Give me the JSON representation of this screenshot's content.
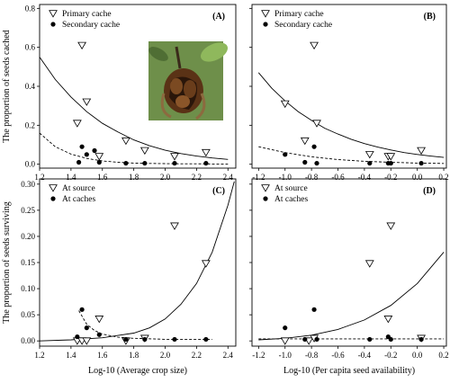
{
  "chart_data": [
    {
      "panel": "A",
      "type": "scatter",
      "label": "(A)",
      "x_tick_labels": [
        "1.2",
        "1.4",
        "1.6",
        "1.8",
        "2.0",
        "2.2",
        "2.4"
      ],
      "y_tick_labels": [
        "0.0",
        "0.2",
        "0.4",
        "0.6",
        "0.8"
      ],
      "xlim": [
        1.2,
        2.45
      ],
      "ylim": [
        -0.02,
        0.82
      ],
      "ylabel": "The proportion of seeds cached",
      "inset_photo": true,
      "series": [
        {
          "name": "Primary cache",
          "marker": "triangle-down",
          "x": [
            1.44,
            1.47,
            1.5,
            1.58,
            1.75,
            1.87,
            2.06,
            2.26
          ],
          "y": [
            0.21,
            0.61,
            0.32,
            0.04,
            0.12,
            0.07,
            0.04,
            0.06
          ]
        },
        {
          "name": "Secondary cache",
          "marker": "circle",
          "x": [
            1.45,
            1.47,
            1.5,
            1.55,
            1.58,
            1.75,
            1.87,
            2.06,
            2.26
          ],
          "y": [
            0.01,
            0.09,
            0.05,
            0.07,
            0.01,
            0.005,
            0.005,
            0.005,
            0.005
          ]
        }
      ],
      "fits": [
        {
          "style": "solid",
          "x": [
            1.2,
            1.3,
            1.4,
            1.5,
            1.6,
            1.7,
            1.8,
            1.9,
            2.0,
            2.1,
            2.2,
            2.3,
            2.4
          ],
          "y": [
            0.55,
            0.435,
            0.345,
            0.27,
            0.21,
            0.165,
            0.125,
            0.095,
            0.072,
            0.055,
            0.042,
            0.032,
            0.025
          ]
        },
        {
          "style": "dashed",
          "x": [
            1.2,
            1.3,
            1.4,
            1.5,
            1.6,
            1.7,
            1.8,
            1.9,
            2.0,
            2.1,
            2.2,
            2.3,
            2.4
          ],
          "y": [
            0.16,
            0.09,
            0.052,
            0.03,
            0.017,
            0.01,
            0.006,
            0.004,
            0.003,
            0.002,
            0.002,
            0.001,
            0.001
          ]
        }
      ]
    },
    {
      "panel": "B",
      "type": "scatter",
      "label": "(B)",
      "x_tick_labels": [
        "-1.2",
        "-1.0",
        "-0.8",
        "-0.6",
        "-0.4",
        "-0.2",
        "0.0",
        "0.2"
      ],
      "y_tick_labels": [],
      "xlim": [
        -1.25,
        0.22
      ],
      "ylim": [
        -0.02,
        0.82
      ],
      "series": [
        {
          "name": "Primary cache",
          "marker": "triangle-down",
          "x": [
            -1.0,
            -0.85,
            -0.78,
            -0.76,
            -0.36,
            -0.22,
            -0.2,
            0.03
          ],
          "y": [
            0.31,
            0.12,
            0.61,
            0.21,
            0.05,
            0.04,
            0.04,
            0.07
          ]
        },
        {
          "name": "Secondary cache",
          "marker": "circle",
          "x": [
            -1.0,
            -0.85,
            -0.78,
            -0.76,
            -0.36,
            -0.22,
            -0.2,
            0.03
          ],
          "y": [
            0.05,
            0.01,
            0.09,
            0.005,
            0.005,
            0.005,
            0.005,
            0.005
          ]
        }
      ],
      "fits": [
        {
          "style": "solid",
          "x": [
            -1.2,
            -1.1,
            -1.0,
            -0.9,
            -0.8,
            -0.7,
            -0.6,
            -0.5,
            -0.4,
            -0.3,
            -0.2,
            -0.1,
            0.0,
            0.1,
            0.2
          ],
          "y": [
            0.47,
            0.39,
            0.325,
            0.27,
            0.225,
            0.185,
            0.155,
            0.128,
            0.106,
            0.088,
            0.073,
            0.06,
            0.05,
            0.042,
            0.035
          ]
        },
        {
          "style": "dashed",
          "x": [
            -1.2,
            -1.0,
            -0.8,
            -0.6,
            -0.4,
            -0.2,
            0.0,
            0.2
          ],
          "y": [
            0.09,
            0.06,
            0.038,
            0.024,
            0.015,
            0.01,
            0.006,
            0.004
          ]
        }
      ]
    },
    {
      "panel": "C",
      "type": "scatter",
      "label": "(C)",
      "x_tick_labels": [
        "1.2",
        "1.4",
        "1.6",
        "1.8",
        "2.0",
        "2.2",
        "2.4"
      ],
      "y_tick_labels": [
        "0.00",
        "0.05",
        "0.10",
        "0.15",
        "0.20",
        "0.25",
        "0.30"
      ],
      "xlim": [
        1.2,
        2.45
      ],
      "ylim": [
        -0.01,
        0.31
      ],
      "xlabel": "Log-10 (Average crop size)",
      "ylabel": "The proportion of seeds surviving",
      "series": [
        {
          "name": "At source",
          "marker": "triangle-down",
          "x": [
            1.44,
            1.47,
            1.5,
            1.58,
            1.75,
            1.87,
            2.06,
            2.26
          ],
          "y": [
            0.0,
            0.0,
            0.0,
            0.042,
            0.0,
            0.005,
            0.22,
            0.148
          ]
        },
        {
          "name": "At caches",
          "marker": "circle",
          "x": [
            1.44,
            1.47,
            1.5,
            1.58,
            1.75,
            1.87,
            2.06,
            2.26
          ],
          "y": [
            0.008,
            0.06,
            0.025,
            0.012,
            0.003,
            0.003,
            0.003,
            0.003
          ]
        }
      ],
      "fits": [
        {
          "style": "solid",
          "x": [
            1.2,
            1.4,
            1.6,
            1.8,
            1.9,
            2.0,
            2.1,
            2.2,
            2.3,
            2.4,
            2.44
          ],
          "y": [
            0.0,
            0.002,
            0.006,
            0.015,
            0.025,
            0.042,
            0.07,
            0.11,
            0.17,
            0.26,
            0.305
          ]
        },
        {
          "style": "dashed",
          "x": [
            1.45,
            1.5,
            1.55,
            1.6,
            1.7,
            1.8,
            2.0,
            2.2,
            2.3
          ],
          "y": [
            0.058,
            0.032,
            0.02,
            0.013,
            0.007,
            0.005,
            0.003,
            0.003,
            0.003
          ]
        }
      ]
    },
    {
      "panel": "D",
      "type": "scatter",
      "label": "(D)",
      "x_tick_labels": [
        "-1.2",
        "-1.0",
        "-0.8",
        "-0.6",
        "-0.4",
        "-0.2",
        "0.0",
        "0.2"
      ],
      "y_tick_labels": [],
      "xlim": [
        -1.25,
        0.22
      ],
      "ylim": [
        -0.01,
        0.31
      ],
      "xlabel": "Log-10 (Per capita seed availability)",
      "series": [
        {
          "name": "At source",
          "marker": "triangle-down",
          "x": [
            -1.0,
            -0.82,
            -0.78,
            -0.36,
            -0.22,
            -0.2,
            0.03
          ],
          "y": [
            0.0,
            0.0,
            0.005,
            0.148,
            0.042,
            0.22,
            0.005
          ]
        },
        {
          "name": "At caches",
          "marker": "circle",
          "x": [
            -1.0,
            -0.85,
            -0.78,
            -0.76,
            -0.36,
            -0.22,
            -0.2,
            0.03
          ],
          "y": [
            0.025,
            0.003,
            0.06,
            0.003,
            0.003,
            0.008,
            0.003,
            0.003
          ]
        }
      ],
      "fits": [
        {
          "style": "solid",
          "x": [
            -1.2,
            -1.0,
            -0.8,
            -0.6,
            -0.4,
            -0.2,
            0.0,
            0.2
          ],
          "y": [
            0.002,
            0.005,
            0.011,
            0.022,
            0.04,
            0.068,
            0.11,
            0.17
          ]
        },
        {
          "style": "dashed",
          "x": [
            -1.2,
            -1.0,
            -0.8,
            -0.6,
            -0.4,
            -0.2,
            0.0,
            0.2
          ],
          "y": [
            0.004,
            0.004,
            0.004,
            0.004,
            0.004,
            0.004,
            0.004,
            0.004
          ]
        }
      ]
    }
  ]
}
